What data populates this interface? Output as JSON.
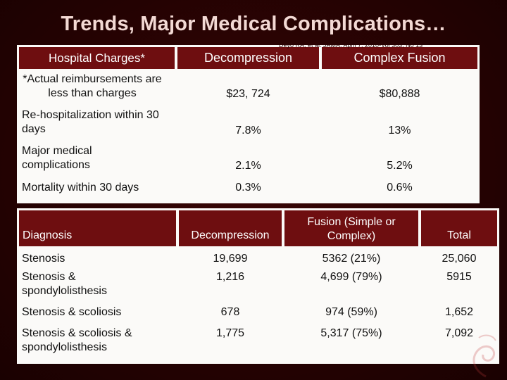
{
  "slide": {
    "title": "Trends, Major Medical Complications…",
    "citation": "Deyo RA, et al. JAMA. April 7, 2010-Vol 303, No 13"
  },
  "outcomes_table": {
    "headers": {
      "label": "Hospital Charges*",
      "decompression": "Decompression",
      "fusion": "Complex Fusion"
    },
    "rows": [
      {
        "label": "*Actual reimbursements are less than charges",
        "decompression": "$23, 724",
        "fusion": "$80,888"
      },
      {
        "label": "Re-hospitalization within 30 days",
        "decompression": "7.8%",
        "fusion": "13%"
      },
      {
        "label": "Major medical complications",
        "decompression": "2.1%",
        "fusion": "5.2%"
      },
      {
        "label": "Mortality within 30 days",
        "decompression": "0.3%",
        "fusion": "0.6%"
      }
    ]
  },
  "diagnosis_table": {
    "headers": {
      "diagnosis": "Diagnosis",
      "decompression": "Decompression",
      "fusion": "Fusion (Simple or Complex)",
      "total": "Total"
    },
    "rows": [
      {
        "diagnosis": "Stenosis",
        "decompression": "19,699",
        "fusion": "5362 (21%)",
        "total": "25,060"
      },
      {
        "diagnosis": "Stenosis & spondylolisthesis",
        "decompression": "1,216",
        "fusion": "4,699 (79%)",
        "total": "5915"
      },
      {
        "diagnosis": "Stenosis & scoliosis",
        "decompression": "678",
        "fusion": "974 (59%)",
        "total": "1,652"
      },
      {
        "diagnosis": "Stenosis & scoliosis & spondylolisthesis",
        "decompression": "1,775",
        "fusion": "5,317 (75%)",
        "total": "7,092"
      }
    ]
  }
}
